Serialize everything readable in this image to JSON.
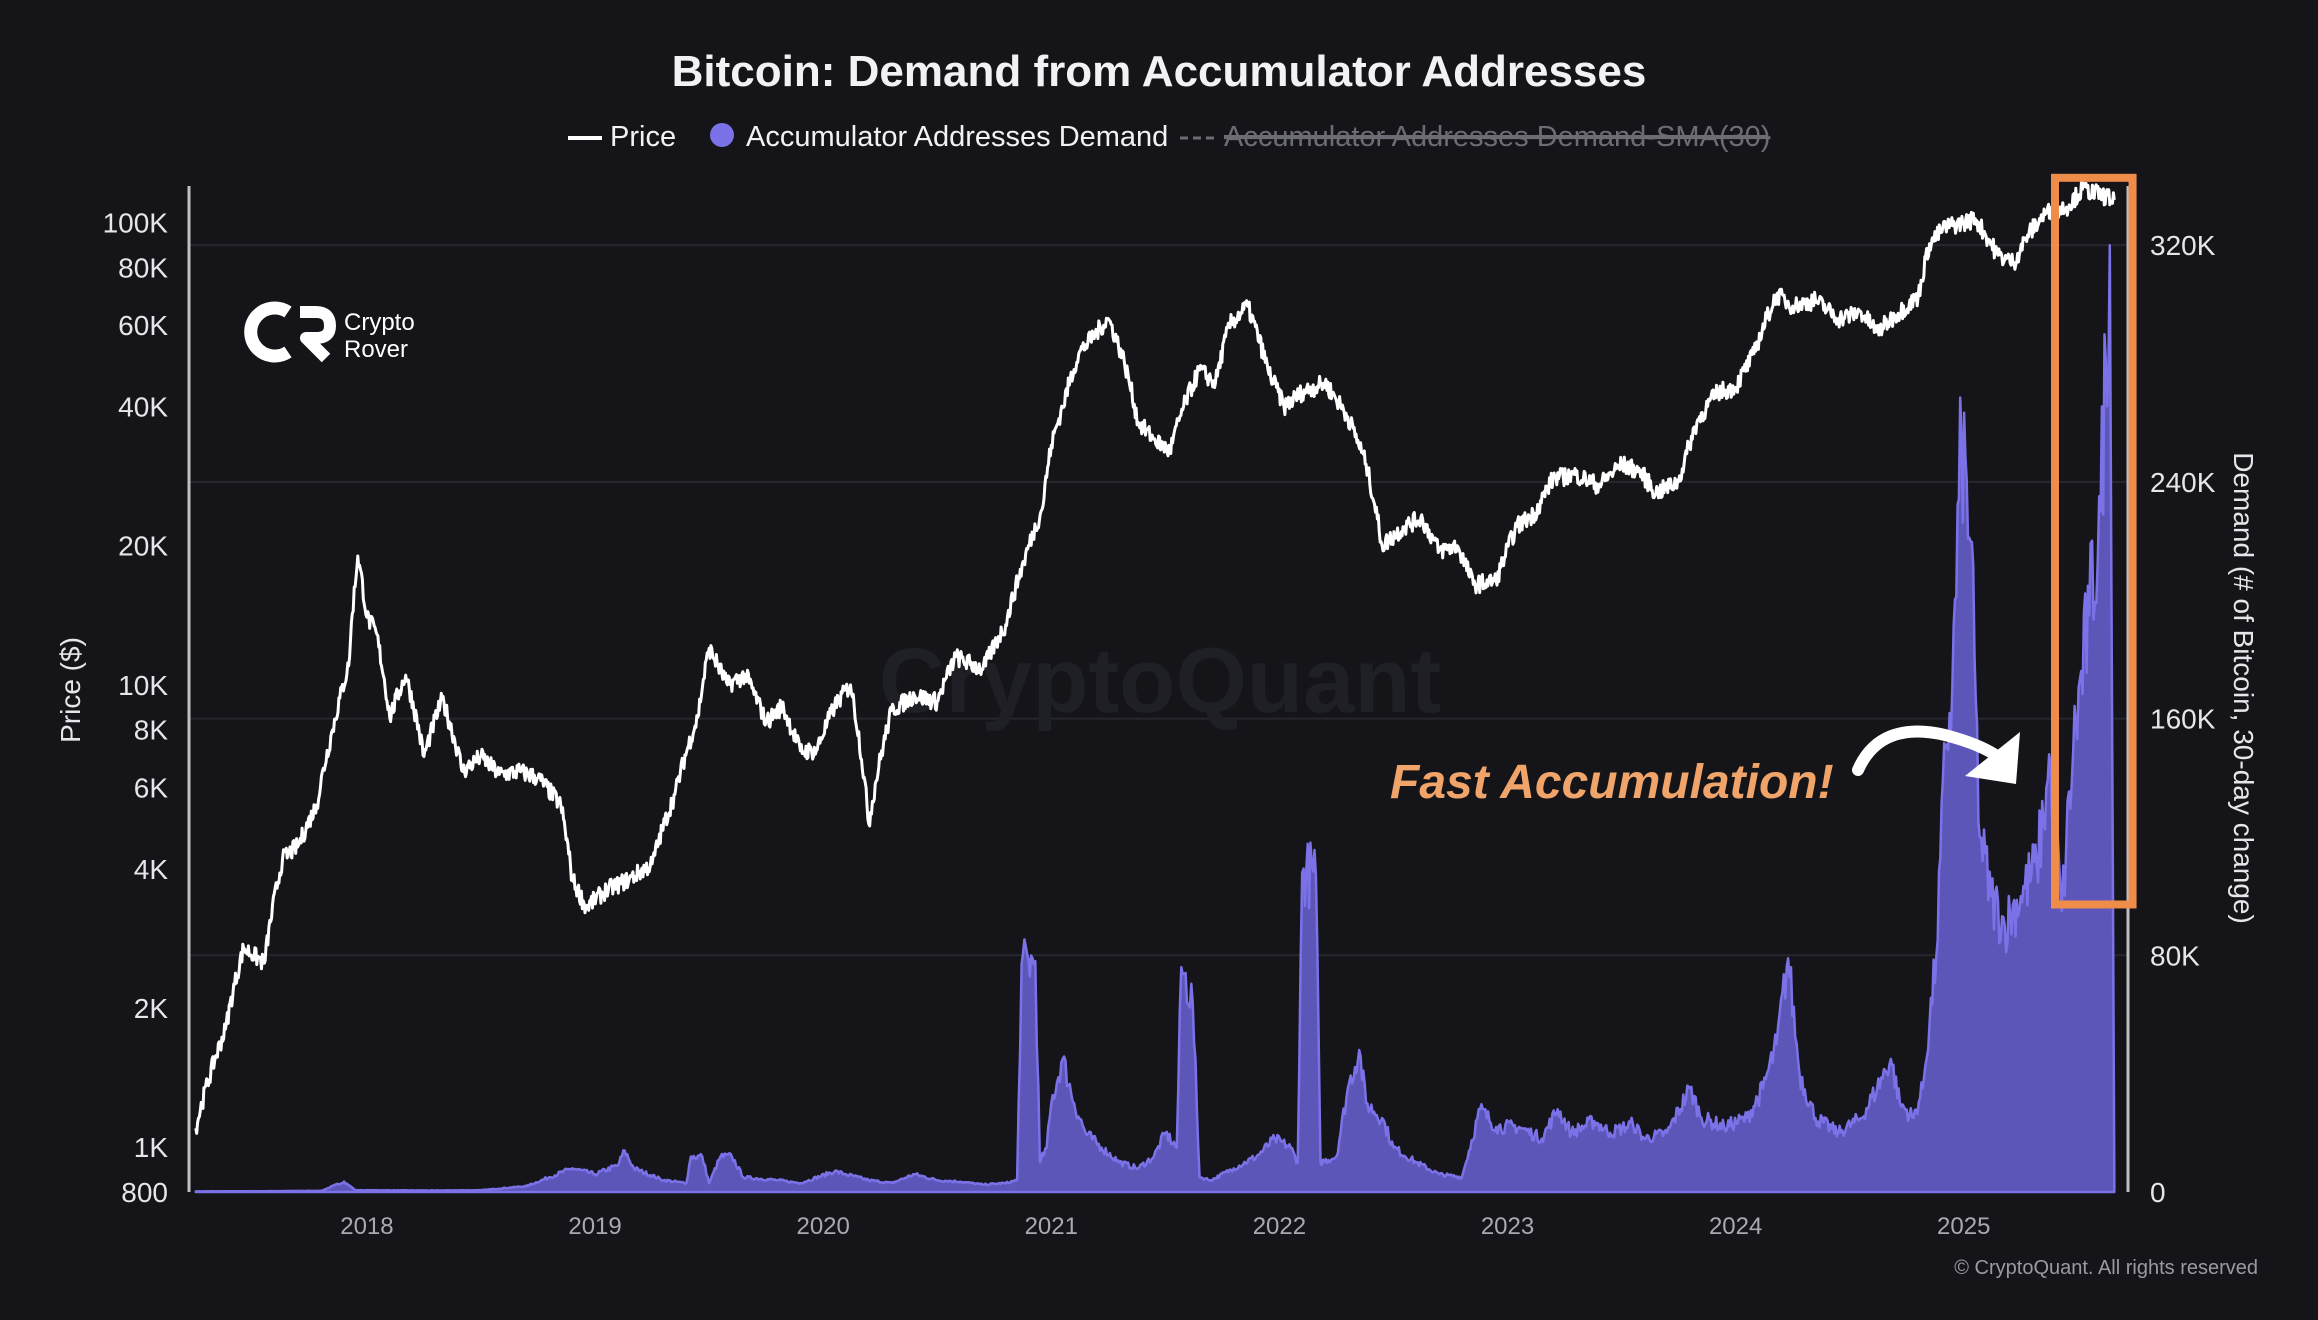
{
  "chart_data": {
    "type": "line",
    "title": "Bitcoin: Demand from Accumulator Addresses",
    "legend": {
      "placement": "top-center",
      "items": [
        {
          "label": "Price",
          "marker": "line",
          "color": "#ffffff",
          "enabled": true
        },
        {
          "label": "Accumulator Addresses Demand",
          "marker": "dot",
          "color": "#7b72e8",
          "enabled": true
        },
        {
          "label": "Accumulator Addresses Demand-SMA(30)",
          "marker": "dashed",
          "color": "#6c6c74",
          "enabled": false
        }
      ]
    },
    "y_left": {
      "label": "Price ($)",
      "scale": "log",
      "range": [
        800,
        120000
      ],
      "ticks": [
        {
          "value": 800,
          "label": "800"
        },
        {
          "value": 1000,
          "label": "1K"
        },
        {
          "value": 2000,
          "label": "2K"
        },
        {
          "value": 4000,
          "label": "4K"
        },
        {
          "value": 6000,
          "label": "6K"
        },
        {
          "value": 8000,
          "label": "8K"
        },
        {
          "value": 10000,
          "label": "10K"
        },
        {
          "value": 20000,
          "label": "20K"
        },
        {
          "value": 40000,
          "label": "40K"
        },
        {
          "value": 60000,
          "label": "60K"
        },
        {
          "value": 80000,
          "label": "80K"
        },
        {
          "value": 100000,
          "label": "100K"
        }
      ]
    },
    "y_right": {
      "label": "Demand (# of Bitcoin, 30-day change)",
      "scale": "linear",
      "range": [
        0,
        340000
      ],
      "ticks": [
        {
          "value": 0,
          "label": "0"
        },
        {
          "value": 80000,
          "label": "80K"
        },
        {
          "value": 160000,
          "label": "160K"
        },
        {
          "value": 240000,
          "label": "240K"
        },
        {
          "value": 320000,
          "label": "320K"
        }
      ]
    },
    "x_axis": {
      "range": [
        2017.22,
        2025.72
      ],
      "ticks": [
        {
          "value": 2018.0,
          "label": "2018"
        },
        {
          "value": 2019.0,
          "label": "2019"
        },
        {
          "value": 2020.0,
          "label": "2020"
        },
        {
          "value": 2021.0,
          "label": "2021"
        },
        {
          "value": 2022.0,
          "label": "2022"
        },
        {
          "value": 2023.0,
          "label": "2023"
        },
        {
          "value": 2024.0,
          "label": "2024"
        },
        {
          "value": 2025.0,
          "label": "2025"
        }
      ]
    },
    "grid": true,
    "series": [
      {
        "name": "Price",
        "axis": "left",
        "color": "#ffffff",
        "points": [
          [
            2017.25,
            1100
          ],
          [
            2017.38,
            1800
          ],
          [
            2017.46,
            2700
          ],
          [
            2017.55,
            2500
          ],
          [
            2017.63,
            4200
          ],
          [
            2017.7,
            4500
          ],
          [
            2017.78,
            5500
          ],
          [
            2017.85,
            8000
          ],
          [
            2017.92,
            11000
          ],
          [
            2017.96,
            19000
          ],
          [
            2018.0,
            14000
          ],
          [
            2018.04,
            13000
          ],
          [
            2018.1,
            8500
          ],
          [
            2018.17,
            10500
          ],
          [
            2018.25,
            7000
          ],
          [
            2018.33,
            9300
          ],
          [
            2018.42,
            6500
          ],
          [
            2018.5,
            7000
          ],
          [
            2018.58,
            6400
          ],
          [
            2018.67,
            6500
          ],
          [
            2018.75,
            6300
          ],
          [
            2018.85,
            5500
          ],
          [
            2018.9,
            3800
          ],
          [
            2018.96,
            3300
          ],
          [
            2019.05,
            3600
          ],
          [
            2019.15,
            3800
          ],
          [
            2019.25,
            4100
          ],
          [
            2019.35,
            5800
          ],
          [
            2019.45,
            8500
          ],
          [
            2019.5,
            12000
          ],
          [
            2019.58,
            10000
          ],
          [
            2019.66,
            10500
          ],
          [
            2019.75,
            8300
          ],
          [
            2019.82,
            9000
          ],
          [
            2019.9,
            7200
          ],
          [
            2019.97,
            7200
          ],
          [
            2020.05,
            9000
          ],
          [
            2020.12,
            10000
          ],
          [
            2020.2,
            5000
          ],
          [
            2020.3,
            8800
          ],
          [
            2020.4,
            9500
          ],
          [
            2020.5,
            9200
          ],
          [
            2020.58,
            11500
          ],
          [
            2020.7,
            10800
          ],
          [
            2020.8,
            13500
          ],
          [
            2020.88,
            18500
          ],
          [
            2020.96,
            24000
          ],
          [
            2021.0,
            33000
          ],
          [
            2021.05,
            40000
          ],
          [
            2021.12,
            52000
          ],
          [
            2021.2,
            58000
          ],
          [
            2021.25,
            62000
          ],
          [
            2021.32,
            50000
          ],
          [
            2021.38,
            37000
          ],
          [
            2021.45,
            34000
          ],
          [
            2021.52,
            32000
          ],
          [
            2021.58,
            40000
          ],
          [
            2021.65,
            48000
          ],
          [
            2021.72,
            45000
          ],
          [
            2021.78,
            60000
          ],
          [
            2021.86,
            66000
          ],
          [
            2021.95,
            48000
          ],
          [
            2022.02,
            40000
          ],
          [
            2022.1,
            43000
          ],
          [
            2022.2,
            45000
          ],
          [
            2022.3,
            38000
          ],
          [
            2022.38,
            30000
          ],
          [
            2022.45,
            20000
          ],
          [
            2022.55,
            22000
          ],
          [
            2022.62,
            23000
          ],
          [
            2022.7,
            19500
          ],
          [
            2022.78,
            20000
          ],
          [
            2022.85,
            16500
          ],
          [
            2022.95,
            16800
          ],
          [
            2023.04,
            22000
          ],
          [
            2023.12,
            23500
          ],
          [
            2023.2,
            28000
          ],
          [
            2023.3,
            28500
          ],
          [
            2023.4,
            27000
          ],
          [
            2023.5,
            30000
          ],
          [
            2023.58,
            29000
          ],
          [
            2023.65,
            26000
          ],
          [
            2023.75,
            27500
          ],
          [
            2023.83,
            37000
          ],
          [
            2023.92,
            43000
          ],
          [
            2024.0,
            44000
          ],
          [
            2024.08,
            52000
          ],
          [
            2024.18,
            70000
          ],
          [
            2024.25,
            66000
          ],
          [
            2024.35,
            68000
          ],
          [
            2024.45,
            62000
          ],
          [
            2024.55,
            64000
          ],
          [
            2024.62,
            58000
          ],
          [
            2024.7,
            63000
          ],
          [
            2024.8,
            69000
          ],
          [
            2024.85,
            90000
          ],
          [
            2024.92,
            98000
          ],
          [
            2025.0,
            100000
          ],
          [
            2025.05,
            102000
          ],
          [
            2025.15,
            85000
          ],
          [
            2025.22,
            82000
          ],
          [
            2025.28,
            94000
          ],
          [
            2025.36,
            105000
          ],
          [
            2025.45,
            108000
          ],
          [
            2025.52,
            118000
          ],
          [
            2025.6,
            115000
          ],
          [
            2025.66,
            112000
          ]
        ]
      },
      {
        "name": "Accumulator Addresses Demand",
        "axis": "right",
        "color": "#7b72e8",
        "points": [
          [
            2017.25,
            200
          ],
          [
            2017.6,
            300
          ],
          [
            2017.8,
            400
          ],
          [
            2017.9,
            3500
          ],
          [
            2017.95,
            600
          ],
          [
            2018.3,
            500
          ],
          [
            2018.5,
            600
          ],
          [
            2018.7,
            2000
          ],
          [
            2018.8,
            5000
          ],
          [
            2018.9,
            8000
          ],
          [
            2019.0,
            6000
          ],
          [
            2019.1,
            9000
          ],
          [
            2019.13,
            14000
          ],
          [
            2019.17,
            8000
          ],
          [
            2019.3,
            4000
          ],
          [
            2019.4,
            3000
          ],
          [
            2019.42,
            12000
          ],
          [
            2019.47,
            12000
          ],
          [
            2019.5,
            3000
          ],
          [
            2019.55,
            12000
          ],
          [
            2019.6,
            12000
          ],
          [
            2019.65,
            5000
          ],
          [
            2019.8,
            4000
          ],
          [
            2019.9,
            3000
          ],
          [
            2020.05,
            7000
          ],
          [
            2020.1,
            6000
          ],
          [
            2020.2,
            4000
          ],
          [
            2020.3,
            3000
          ],
          [
            2020.4,
            6000
          ],
          [
            2020.5,
            4000
          ],
          [
            2020.6,
            3500
          ],
          [
            2020.7,
            2500
          ],
          [
            2020.8,
            3000
          ],
          [
            2020.85,
            4000
          ],
          [
            2020.87,
            77000
          ],
          [
            2020.93,
            78000
          ],
          [
            2020.95,
            10000
          ],
          [
            2020.98,
            15000
          ],
          [
            2021.0,
            30000
          ],
          [
            2021.05,
            45000
          ],
          [
            2021.1,
            30000
          ],
          [
            2021.15,
            20000
          ],
          [
            2021.22,
            15000
          ],
          [
            2021.3,
            10000
          ],
          [
            2021.38,
            8000
          ],
          [
            2021.45,
            12000
          ],
          [
            2021.5,
            20000
          ],
          [
            2021.55,
            15000
          ],
          [
            2021.57,
            76000
          ],
          [
            2021.62,
            64000
          ],
          [
            2021.65,
            5000
          ],
          [
            2021.7,
            4000
          ],
          [
            2021.8,
            8000
          ],
          [
            2021.9,
            12000
          ],
          [
            2021.98,
            18000
          ],
          [
            2022.05,
            15000
          ],
          [
            2022.08,
            10000
          ],
          [
            2022.1,
            108000
          ],
          [
            2022.16,
            107000
          ],
          [
            2022.18,
            10000
          ],
          [
            2022.25,
            12000
          ],
          [
            2022.3,
            35000
          ],
          [
            2022.35,
            48000
          ],
          [
            2022.38,
            30000
          ],
          [
            2022.45,
            25000
          ],
          [
            2022.5,
            15000
          ],
          [
            2022.6,
            10000
          ],
          [
            2022.7,
            6000
          ],
          [
            2022.8,
            5000
          ],
          [
            2022.88,
            28000
          ],
          [
            2022.95,
            22000
          ],
          [
            2023.05,
            22000
          ],
          [
            2023.15,
            18000
          ],
          [
            2023.22,
            28000
          ],
          [
            2023.28,
            20000
          ],
          [
            2023.38,
            24000
          ],
          [
            2023.45,
            20000
          ],
          [
            2023.55,
            23000
          ],
          [
            2023.6,
            18000
          ],
          [
            2023.7,
            20000
          ],
          [
            2023.8,
            35000
          ],
          [
            2023.85,
            25000
          ],
          [
            2023.95,
            22000
          ],
          [
            2024.05,
            25000
          ],
          [
            2024.12,
            35000
          ],
          [
            2024.18,
            50000
          ],
          [
            2024.23,
            79000
          ],
          [
            2024.28,
            40000
          ],
          [
            2024.35,
            25000
          ],
          [
            2024.45,
            20000
          ],
          [
            2024.55,
            25000
          ],
          [
            2024.62,
            35000
          ],
          [
            2024.68,
            45000
          ],
          [
            2024.72,
            30000
          ],
          [
            2024.78,
            25000
          ],
          [
            2024.82,
            35000
          ],
          [
            2024.88,
            80000
          ],
          [
            2024.92,
            150000
          ],
          [
            2024.95,
            170000
          ],
          [
            2024.99,
            255000
          ],
          [
            2025.03,
            220000
          ],
          [
            2025.07,
            120000
          ],
          [
            2025.12,
            100000
          ],
          [
            2025.18,
            90000
          ],
          [
            2025.25,
            100000
          ],
          [
            2025.32,
            110000
          ],
          [
            2025.38,
            145000
          ],
          [
            2025.43,
            95000
          ],
          [
            2025.48,
            150000
          ],
          [
            2025.55,
            195000
          ],
          [
            2025.6,
            230000
          ],
          [
            2025.64,
            320000
          ],
          [
            2025.66,
            5000
          ]
        ]
      }
    ],
    "annotations": [
      {
        "type": "text",
        "text": "Fast Accumulation!",
        "color": "#f0a46a"
      },
      {
        "type": "arrow",
        "color": "#ffffff"
      },
      {
        "type": "box",
        "color": "#f08c4a",
        "x_range": [
          2025.4,
          2025.74
        ],
        "y_left_range": [
          3350,
          125000
        ]
      }
    ],
    "watermark": "CryptoQuant",
    "logo": {
      "text_line1": "Crypto",
      "text_line2": "Rover",
      "icon": "crypto-rover-logo-icon"
    },
    "copyright": "© CryptoQuant. All rights reserved"
  },
  "colors": {
    "background": "#141419",
    "grid": "#26262d",
    "axis": "#bfbfc4",
    "tick_text": "#e6e6ea",
    "area_fill": "#5b56b8",
    "area_line": "#7b72e8",
    "accent_box": "#f08c4a",
    "annotation_text": "#f0a46a"
  }
}
